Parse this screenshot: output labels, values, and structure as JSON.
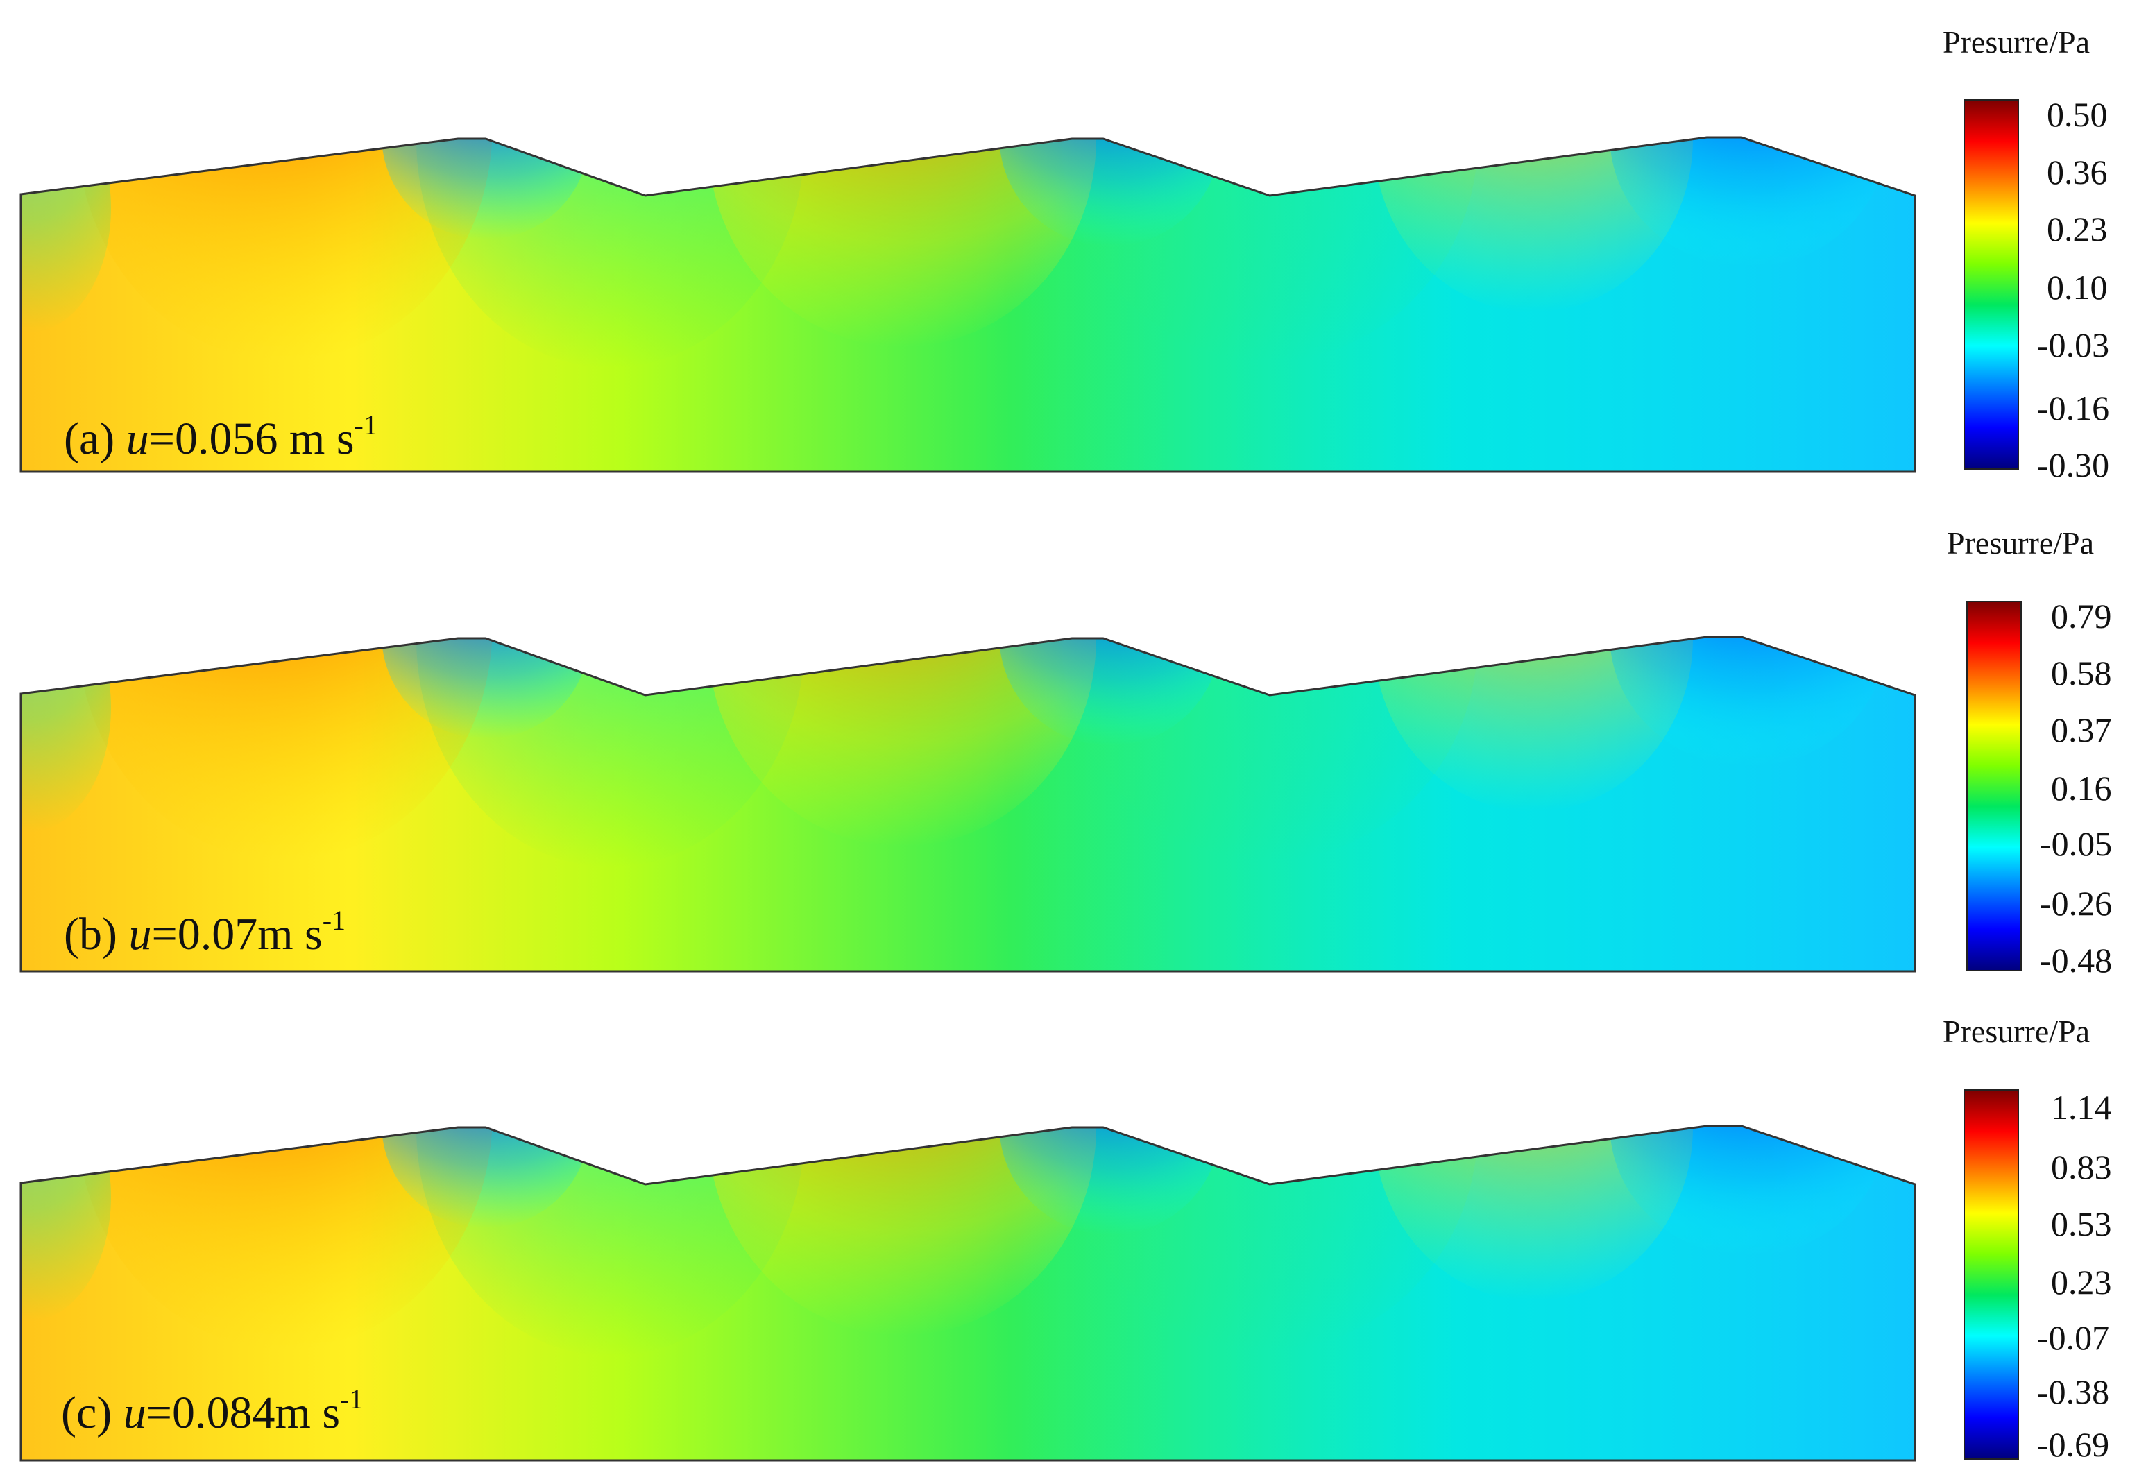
{
  "panels": [
    {
      "label": "(a)",
      "var": "u",
      "value_text": "=0.056 m s",
      "exponent": "-1",
      "colorbar_title": "Presurre/Pa",
      "colorbar_ticks": [
        "0.50",
        "0.36",
        "0.23",
        "0.10",
        "-0.03",
        "-0.16",
        "-0.30"
      ]
    },
    {
      "label": "(b)",
      "var": "u",
      "value_text": "=0.07m s",
      "exponent": "-1",
      "colorbar_title": "Presurre/Pa",
      "colorbar_ticks": [
        "0.79",
        "0.58",
        "0.37",
        "0.16",
        "-0.05",
        "-0.26",
        "-0.48"
      ]
    },
    {
      "label": "(c)",
      "var": "u",
      "value_text": "=0.084m s",
      "exponent": "-1",
      "colorbar_title": "Presurre/Pa",
      "colorbar_ticks": [
        "1.14",
        "0.83",
        "0.53",
        "0.23",
        "-0.07",
        "-0.38",
        "-0.69"
      ]
    }
  ],
  "colormap": [
    "#00007f",
    "#0000ff",
    "#007fff",
    "#00ffff",
    "#00e85f",
    "#7fff00",
    "#ffff00",
    "#ff7f00",
    "#ff0000",
    "#7f0000"
  ]
}
